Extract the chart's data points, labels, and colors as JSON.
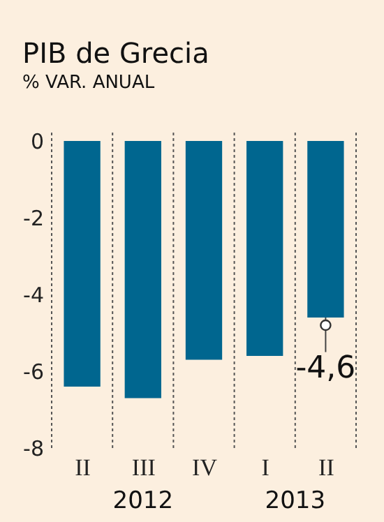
{
  "chart_data": {
    "type": "bar",
    "title": "PIB de Grecia",
    "subtitle": "% VAR. ANUAL",
    "categories": [
      "II",
      "III",
      "IV",
      "I",
      "II"
    ],
    "values": [
      -6.4,
      -6.7,
      -5.7,
      -5.6,
      -4.6
    ],
    "value_labels": [
      null,
      null,
      null,
      null,
      "-4,6"
    ],
    "color": "#00668f",
    "ylim": [
      -8,
      0
    ],
    "yticks": [
      0,
      -2,
      -4,
      -6,
      -8
    ],
    "grid": "x",
    "annotations": [
      "2012",
      "2013"
    ]
  }
}
